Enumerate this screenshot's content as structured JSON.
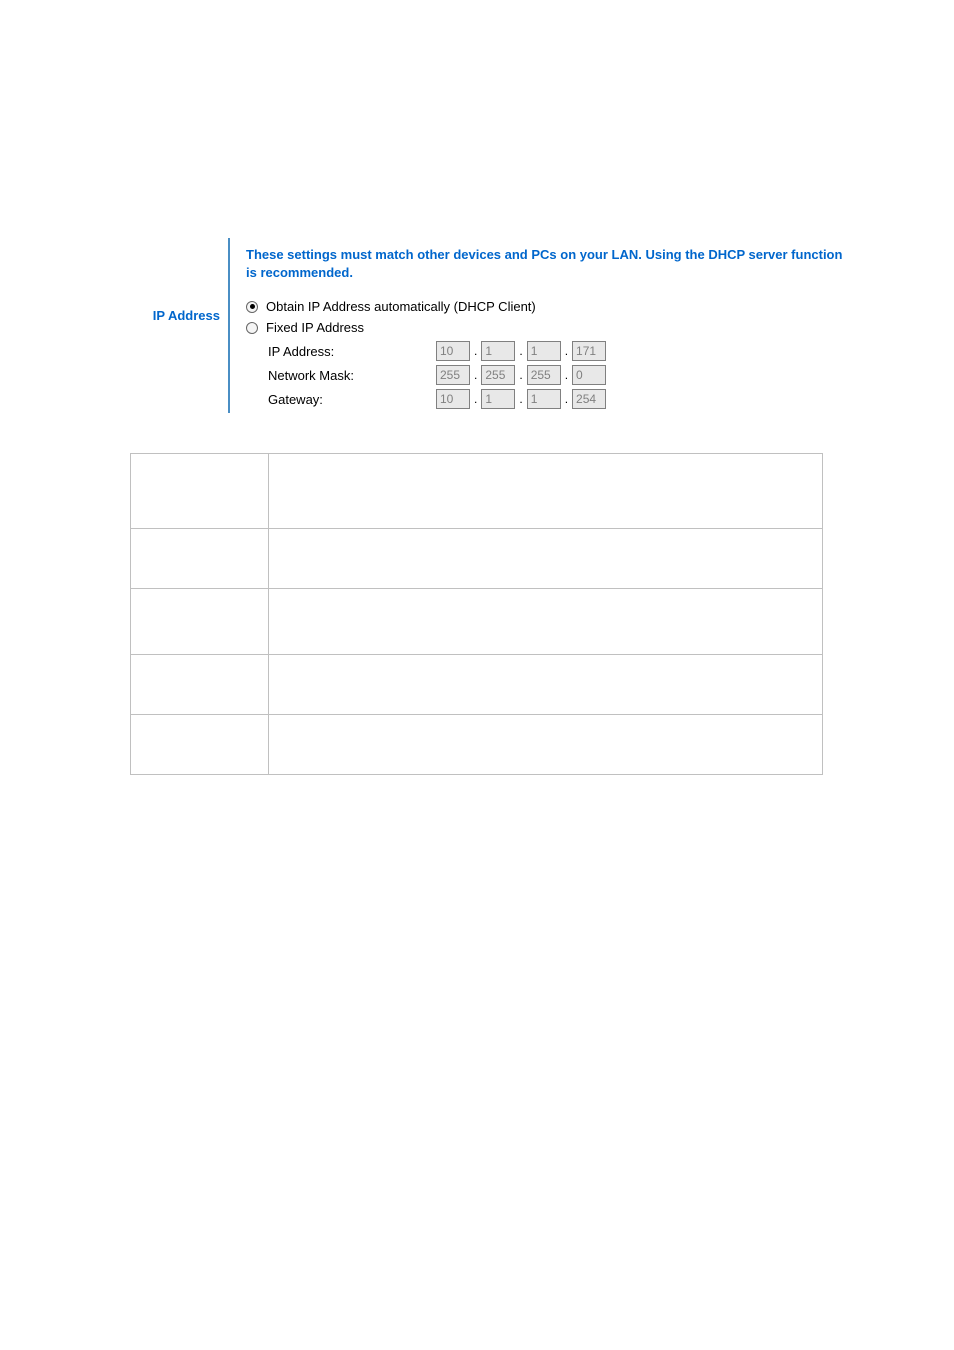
{
  "section_title": "IP Address",
  "header_message": "These settings must match other devices and PCs on your LAN. Using the DHCP server function is recommended.",
  "radio_dhcp_label": "Obtain IP Address automatically (DHCP Client)",
  "radio_fixed_label": "Fixed IP Address",
  "fields": {
    "ip_address": {
      "label": "IP Address:",
      "octets": [
        "10",
        "1",
        "1",
        "171"
      ]
    },
    "network_mask": {
      "label": "Network Mask:",
      "octets": [
        "255",
        "255",
        "255",
        "0"
      ]
    },
    "gateway": {
      "label": "Gateway:",
      "octets": [
        "10",
        "1",
        "1",
        "254"
      ]
    }
  },
  "ip_mode_selected": "dhcp",
  "colors": {
    "accent": "#0066cc",
    "border_accent": "#4a8ec4",
    "input_disabled_bg": "#e8e8e8",
    "input_disabled_fg": "#808080",
    "table_border": "#c0c0c0"
  }
}
